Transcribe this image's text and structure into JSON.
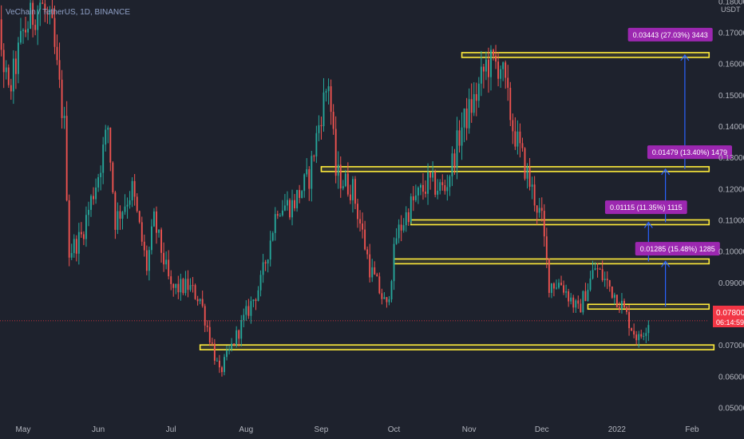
{
  "chart_data": {
    "type": "candlestick",
    "title": "VeChain / TetherUS, 1D, BINANCE",
    "y_unit": "USDT",
    "ylim": [
      0.0458,
      0.1806
    ],
    "y_ticks": [
      "0.18000",
      "0.17000",
      "0.16000",
      "0.15000",
      "0.14000",
      "0.13000",
      "0.12000",
      "0.11000",
      "0.10000",
      "0.09000",
      "0.08000",
      "0.07000",
      "0.06000",
      "0.05000"
    ],
    "x_ticks": [
      "May",
      "Jun",
      "Jul",
      "Aug",
      "Sep",
      "Oct",
      "Nov",
      "Dec",
      "2022",
      "Feb"
    ],
    "current_price": "0.07800",
    "countdown": "06:14:59",
    "price_path": [
      [
        "2021-04-15",
        0.16
      ],
      [
        "2021-04-20",
        0.175
      ],
      [
        "2021-04-25",
        0.15
      ],
      [
        "2021-05-01",
        0.17
      ],
      [
        "2021-05-08",
        0.18
      ],
      [
        "2021-05-13",
        0.17
      ],
      [
        "2021-05-18",
        0.14
      ],
      [
        "2021-05-20",
        0.1
      ],
      [
        "2021-05-25",
        0.105
      ],
      [
        "2021-06-01",
        0.125
      ],
      [
        "2021-06-05",
        0.14
      ],
      [
        "2021-06-08",
        0.11
      ],
      [
        "2021-06-15",
        0.12
      ],
      [
        "2021-06-21",
        0.095
      ],
      [
        "2021-06-24",
        0.11
      ],
      [
        "2021-07-01",
        0.088
      ],
      [
        "2021-07-08",
        0.089
      ],
      [
        "2021-07-13",
        0.085
      ],
      [
        "2021-07-21",
        0.061
      ],
      [
        "2021-07-25",
        0.068
      ],
      [
        "2021-08-01",
        0.08
      ],
      [
        "2021-08-07",
        0.09
      ],
      [
        "2021-08-14",
        0.115
      ],
      [
        "2021-08-20",
        0.115
      ],
      [
        "2021-08-27",
        0.124
      ],
      [
        "2021-09-01",
        0.145
      ],
      [
        "2021-09-04",
        0.155
      ],
      [
        "2021-09-07",
        0.125
      ],
      [
        "2021-09-14",
        0.12
      ],
      [
        "2021-09-21",
        0.095
      ],
      [
        "2021-09-28",
        0.082
      ],
      [
        "2021-10-02",
        0.105
      ],
      [
        "2021-10-08",
        0.115
      ],
      [
        "2021-10-15",
        0.122
      ],
      [
        "2021-10-22",
        0.12
      ],
      [
        "2021-10-29",
        0.14
      ],
      [
        "2021-11-04",
        0.15
      ],
      [
        "2021-11-08",
        0.16
      ],
      [
        "2021-11-14",
        0.16
      ],
      [
        "2021-11-19",
        0.14
      ],
      [
        "2021-11-26",
        0.122
      ],
      [
        "2021-12-01",
        0.11
      ],
      [
        "2021-12-04",
        0.09
      ],
      [
        "2021-12-09",
        0.09
      ],
      [
        "2021-12-16",
        0.081
      ],
      [
        "2021-12-23",
        0.095
      ],
      [
        "2021-12-28",
        0.09
      ],
      [
        "2022-01-03",
        0.083
      ],
      [
        "2022-01-07",
        0.076
      ],
      [
        "2022-01-10",
        0.072
      ],
      [
        "2022-01-14",
        0.078
      ]
    ],
    "levels": [
      {
        "from": "2021-10-29",
        "to": "2022-02-08",
        "y": 0.163
      },
      {
        "from": "2021-09-01",
        "to": "2022-02-08",
        "y": 0.1265
      },
      {
        "from": "2021-10-08",
        "to": "2022-02-08",
        "y": 0.1095
      },
      {
        "from": "2021-10-01",
        "to": "2022-02-08",
        "y": 0.097
      },
      {
        "from": "2021-12-20",
        "to": "2022-02-08",
        "y": 0.0825
      },
      {
        "from": "2021-07-13",
        "to": "2022-02-10",
        "y": 0.0695
      }
    ],
    "arrows": [
      {
        "date": "2022-01-29",
        "y_from": 0.1265,
        "y_to": 0.163
      },
      {
        "date": "2022-01-21",
        "y_from": 0.1095,
        "y_to": 0.1265
      },
      {
        "date": "2022-01-14",
        "y_from": 0.097,
        "y_to": 0.1095
      },
      {
        "date": "2022-01-21",
        "y_from": 0.0825,
        "y_to": 0.097
      }
    ],
    "annotations": [
      {
        "text": "0.03443 (27.03%) 3443",
        "date": "2022-01-23",
        "y": 0.1694
      },
      {
        "text": "0.01479 (13.40%) 1479",
        "date": "2022-01-31",
        "y": 0.1318
      },
      {
        "text": "0.01115 (11.35%) 1115",
        "date": "2022-01-13",
        "y": 0.1142
      },
      {
        "text": "0.01285 (15.48%) 1285",
        "date": "2022-01-26",
        "y": 0.1009
      }
    ],
    "grid": false,
    "colors": {
      "background": "#1e222d",
      "up": "#26a69a",
      "down": "#ef5350",
      "level_line": "#ffeb3b",
      "arrow": "#2962ff",
      "annotation_bg": "#9c27b0",
      "price_label": "#f23645",
      "price_line": "#f23645",
      "axis_text": "#b2b5be",
      "title_text": "#8fa0c6"
    }
  }
}
